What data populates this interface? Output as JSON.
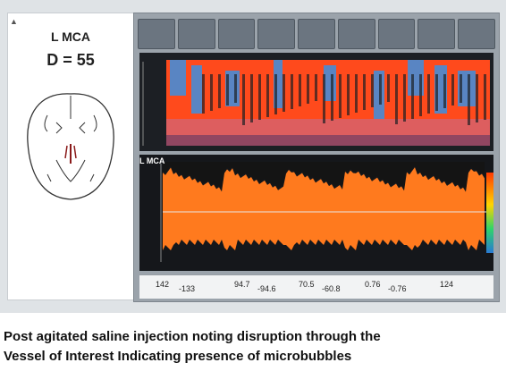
{
  "diagram": {
    "vessel": "L MCA",
    "depth": "D = 55"
  },
  "monitor": {
    "spectral_label": "L MCA",
    "readout": [
      "142",
      "-133",
      "94.7",
      "-94.6",
      "70.5",
      "-60.8",
      "0.76",
      "-0.76",
      "124"
    ]
  },
  "colors": {
    "mmode_red": "#ff4a1c",
    "mmode_blue": "#3c8fe0",
    "spectrum_orange": "#ff7a1e",
    "baseline": "#e8e8e8"
  },
  "caption": {
    "line1": "Post agitated saline injection noting disruption through the",
    "line2": "Vessel of Interest Indicating presence of microbubbles"
  }
}
